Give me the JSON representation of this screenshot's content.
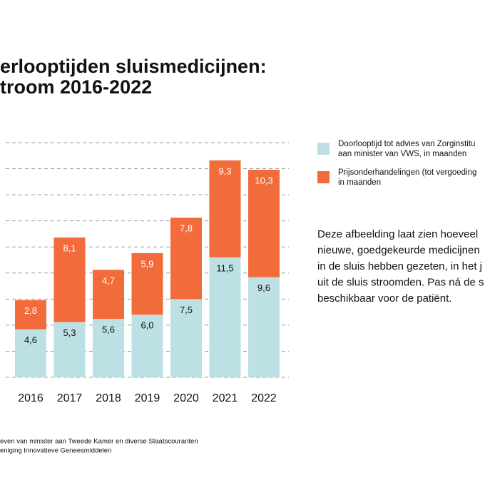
{
  "chart_data": {
    "type": "bar",
    "stacked": true,
    "title": [
      "erlooptijden sluismedicijnen:",
      "troom 2016-2022"
    ],
    "categories": [
      "2016",
      "2017",
      "2018",
      "2019",
      "2020",
      "2021",
      "2022"
    ],
    "series": [
      {
        "name": "Doorlooptijd tot advies van Zorginstitu\naan minister van VWS, in maanden",
        "color": "#bde0e4",
        "values": [
          4.6,
          5.3,
          5.6,
          6.0,
          7.5,
          11.5,
          9.6
        ],
        "value_labels": [
          "4,6",
          "5,3",
          "5,6",
          "6,0",
          "7,5",
          "11,5",
          "9,6"
        ]
      },
      {
        "name": "Prijsonderhandelingen (tot vergoeding\nin maanden",
        "color": "#f26b3a",
        "values": [
          2.8,
          8.1,
          4.7,
          5.9,
          7.8,
          9.3,
          10.3
        ],
        "value_labels": [
          "2,8",
          "8,1",
          "4,7",
          "5,9",
          "7,8",
          "9,3",
          "10,3"
        ]
      }
    ],
    "ylim": [
      0,
      22.5
    ],
    "yticks": [
      0,
      2.5,
      5,
      7.5,
      10,
      12.5,
      15,
      17.5,
      20,
      22.5
    ],
    "grid": true,
    "annotation": [
      "Deze afbeelding laat zien hoeveel",
      "nieuwe, goedgekeurde medicijnen",
      "in de sluis hebben gezeten, in het j",
      "uit de sluis stroomden. Pas ná de s",
      "beschikbaar voor de patiënt."
    ],
    "source": [
      "even van minister aan Tweede Kamer en diverse Staatscouranten",
      "eniging Innovatieve Geneesmiddelen"
    ]
  }
}
